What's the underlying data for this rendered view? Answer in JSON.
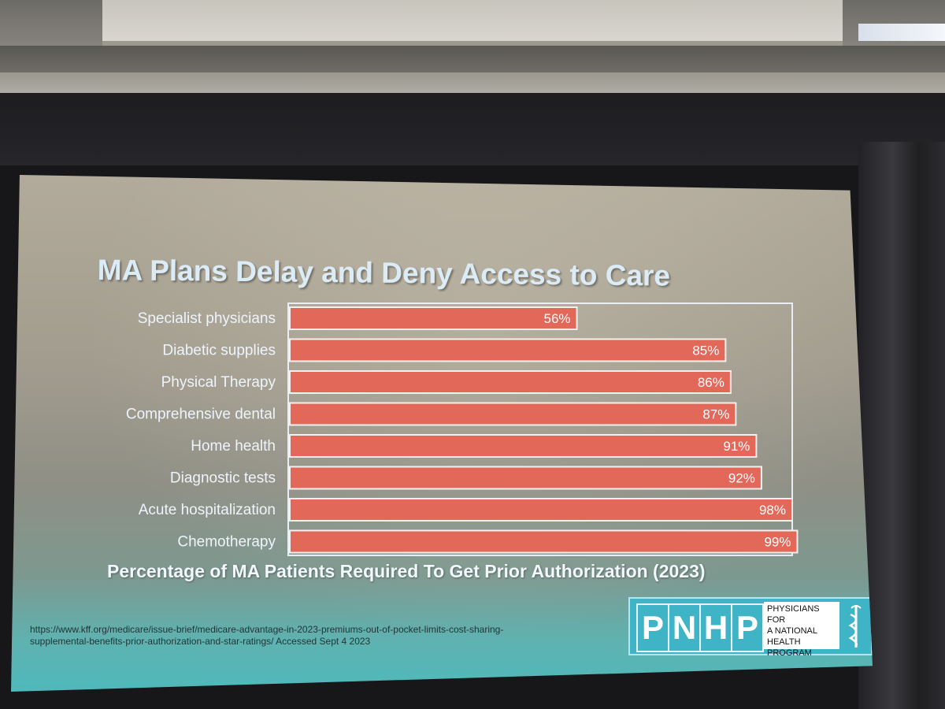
{
  "slide": {
    "title": "MA Plans Delay and Deny Access to Care",
    "subtitle": "Percentage of MA Patients Required To Get Prior Authorization (2023)",
    "source_line1": "https://www.kff.org/medicare/issue-brief/medicare-advantage-in-2023-premiums-out-of-pocket-limits-cost-sharing-",
    "source_line2": "supplemental-benefits-prior-authorization-and-star-ratings/  Accessed Sept 4 2023"
  },
  "logo": {
    "letters": [
      "P",
      "N",
      "H",
      "P"
    ],
    "line1": "PHYSICIANS FOR",
    "line2": "A NATIONAL",
    "line3": "HEALTH",
    "line4": "PROGRAM",
    "color": "#3fb4c6"
  },
  "chart_data": {
    "type": "bar",
    "orientation": "horizontal",
    "title": "MA Plans Delay and Deny Access to Care",
    "xlabel": "Percentage of MA Patients Required To Get Prior Authorization (2023)",
    "ylabel": "",
    "xlim": [
      0,
      100
    ],
    "categories": [
      "Specialist physicians",
      "Diabetic supplies",
      "Physical Therapy",
      "Comprehensive dental",
      "Home health",
      "Diagnostic tests",
      "Acute hospitalization",
      "Chemotherapy"
    ],
    "values": [
      56,
      85,
      86,
      87,
      91,
      92,
      98,
      99
    ],
    "value_labels": [
      "56%",
      "85%",
      "86%",
      "87%",
      "91%",
      "92%",
      "98%",
      "99%"
    ],
    "bar_color": "#e2685a",
    "grid": false
  }
}
